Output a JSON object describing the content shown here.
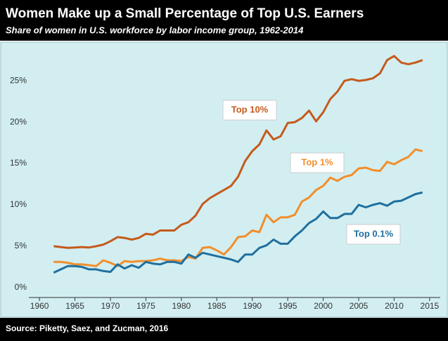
{
  "chart_data": {
    "type": "line",
    "title": "Women Make up a Small Percentage of Top U.S. Earners",
    "subtitle": "Share of women in U.S. workforce by labor income group, 1962-2014",
    "source": "Source: Piketty, Saez, and Zucman, 2016",
    "x": [
      1962,
      1963,
      1964,
      1965,
      1966,
      1967,
      1968,
      1969,
      1970,
      1971,
      1972,
      1973,
      1974,
      1975,
      1976,
      1977,
      1978,
      1979,
      1980,
      1981,
      1982,
      1983,
      1984,
      1985,
      1986,
      1987,
      1988,
      1989,
      1990,
      1991,
      1992,
      1993,
      1994,
      1995,
      1996,
      1997,
      1998,
      1999,
      2000,
      2001,
      2002,
      2003,
      2004,
      2005,
      2006,
      2007,
      2008,
      2009,
      2010,
      2011,
      2012,
      2013,
      2014
    ],
    "series": [
      {
        "name": "Top 10%",
        "color": "#c55a1c",
        "values": [
          5.0,
          4.9,
          4.8,
          4.85,
          4.9,
          4.85,
          5.0,
          5.2,
          5.6,
          6.1,
          6.0,
          5.8,
          6.0,
          6.5,
          6.4,
          6.9,
          6.9,
          6.9,
          7.6,
          7.9,
          8.7,
          10.1,
          10.8,
          11.3,
          11.8,
          12.3,
          13.4,
          15.3,
          16.5,
          17.3,
          19.0,
          17.9,
          18.3,
          19.9,
          20.0,
          20.5,
          21.4,
          20.1,
          21.2,
          22.8,
          23.7,
          25.0,
          25.2,
          25.0,
          25.1,
          25.3,
          25.9,
          27.5,
          28.0,
          27.2,
          27.0,
          27.2,
          27.5
        ]
      },
      {
        "name": "Top 1%",
        "color": "#f28e2b",
        "values": [
          3.1,
          3.1,
          3.0,
          2.8,
          2.8,
          2.7,
          2.6,
          3.3,
          3.0,
          2.6,
          3.2,
          3.1,
          3.2,
          3.2,
          3.3,
          3.5,
          3.3,
          3.3,
          3.2,
          3.7,
          3.5,
          4.8,
          4.9,
          4.5,
          4.0,
          4.9,
          6.1,
          6.2,
          6.9,
          6.7,
          8.8,
          7.9,
          8.5,
          8.5,
          8.8,
          10.4,
          10.9,
          11.8,
          12.3,
          13.3,
          12.9,
          13.4,
          13.6,
          14.4,
          14.5,
          14.2,
          14.1,
          15.2,
          14.9,
          15.4,
          15.8,
          16.7,
          16.5
        ]
      },
      {
        "name": "Top 0.1%",
        "color": "#1f6f9e",
        "values": [
          1.8,
          2.2,
          2.6,
          2.6,
          2.5,
          2.2,
          2.2,
          2.0,
          1.9,
          2.8,
          2.3,
          2.7,
          2.4,
          3.1,
          2.9,
          2.8,
          3.1,
          3.1,
          2.9,
          4.0,
          3.6,
          4.2,
          4.0,
          3.8,
          3.6,
          3.4,
          3.1,
          4.0,
          4.0,
          4.8,
          5.1,
          5.8,
          5.3,
          5.3,
          6.2,
          6.9,
          7.8,
          8.3,
          9.2,
          8.4,
          8.4,
          8.9,
          8.9,
          10.0,
          9.7,
          10.0,
          10.2,
          9.9,
          10.4,
          10.5,
          10.9,
          11.3,
          11.5
        ]
      }
    ],
    "xlim": [
      1958.5,
      2016.5
    ],
    "xticks": [
      1960,
      1965,
      1970,
      1975,
      1980,
      1985,
      1990,
      1995,
      2000,
      2005,
      2010,
      2015
    ],
    "ylim": [
      -1.2,
      29
    ],
    "yticks": [
      {
        "value": 0,
        "label": "0%"
      },
      {
        "value": 5,
        "label": "5%"
      },
      {
        "value": 10,
        "label": "10%"
      },
      {
        "value": 15,
        "label": "15%"
      },
      {
        "value": 20,
        "label": "20%"
      },
      {
        "value": 25,
        "label": "25%"
      }
    ],
    "grid": false
  }
}
